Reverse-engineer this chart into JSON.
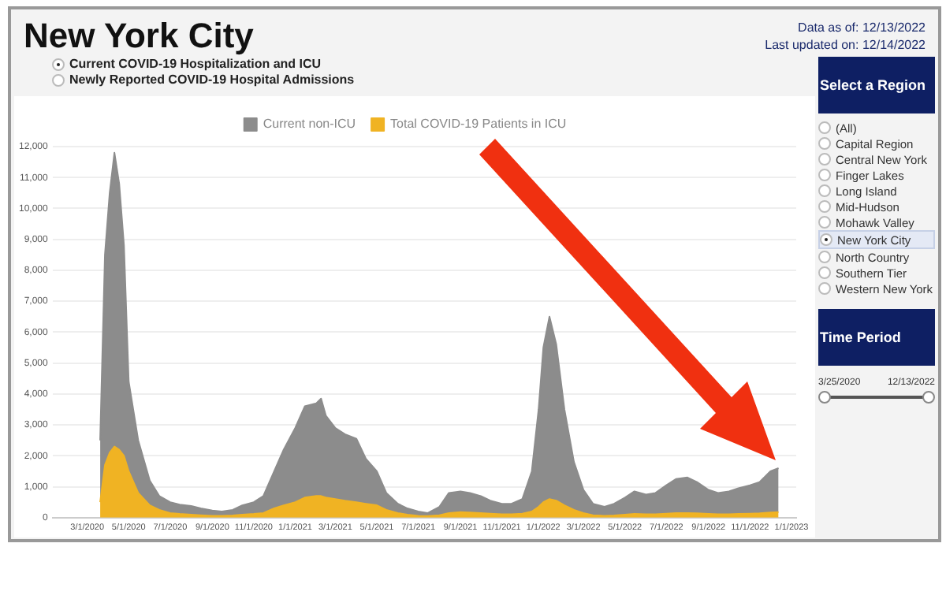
{
  "chart_data": {
    "type": "area",
    "stacked": true,
    "title": "New York City",
    "annotations": [
      "Data as of: 12/13/2022",
      "Last updated on: 12/14/2022",
      "Current COVID-19 Hospitalization and ICU",
      "Newly Reported COVID-19 Hospital Admissions",
      "Select a Region",
      "(All)",
      "Capital Region",
      "Central New York",
      "Finger Lakes",
      "Long Island",
      "Mid-Hudson",
      "Mohawk Valley",
      "New York City",
      "North Country",
      "Southern Tier",
      "Western New York",
      "Time Period",
      "3/25/2020",
      "12/13/2022"
    ],
    "x": [
      "2020-03-20",
      "2020-03-27",
      "2020-04-03",
      "2020-04-10",
      "2020-04-17",
      "2020-04-24",
      "2020-05-01",
      "2020-05-15",
      "2020-06-01",
      "2020-06-15",
      "2020-07-01",
      "2020-07-15",
      "2020-08-01",
      "2020-08-15",
      "2020-09-01",
      "2020-09-15",
      "2020-10-01",
      "2020-10-15",
      "2020-11-01",
      "2020-11-15",
      "2020-12-01",
      "2020-12-15",
      "2021-01-01",
      "2021-01-15",
      "2021-02-01",
      "2021-02-08",
      "2021-02-15",
      "2021-03-01",
      "2021-03-15",
      "2021-04-01",
      "2021-04-15",
      "2021-05-01",
      "2021-05-15",
      "2021-06-01",
      "2021-06-15",
      "2021-07-01",
      "2021-07-15",
      "2021-08-01",
      "2021-08-15",
      "2021-09-01",
      "2021-09-15",
      "2021-10-01",
      "2021-10-15",
      "2021-11-01",
      "2021-11-15",
      "2021-12-01",
      "2021-12-15",
      "2021-12-25",
      "2022-01-01",
      "2022-01-10",
      "2022-01-20",
      "2022-02-01",
      "2022-02-15",
      "2022-03-01",
      "2022-03-15",
      "2022-04-01",
      "2022-04-15",
      "2022-05-01",
      "2022-05-15",
      "2022-06-01",
      "2022-06-15",
      "2022-07-01",
      "2022-07-15",
      "2022-08-01",
      "2022-08-15",
      "2022-09-01",
      "2022-09-15",
      "2022-10-01",
      "2022-10-15",
      "2022-11-01",
      "2022-11-15",
      "2022-12-01",
      "2022-12-13"
    ],
    "series": [
      {
        "name": "Total COVID-19 Patients in ICU",
        "color": "#f0b323",
        "values": [
          500,
          1700,
          2100,
          2300,
          2200,
          2000,
          1500,
          800,
          400,
          250,
          150,
          120,
          100,
          80,
          60,
          60,
          70,
          100,
          120,
          150,
          300,
          400,
          500,
          650,
          700,
          700,
          650,
          600,
          550,
          500,
          450,
          400,
          250,
          150,
          100,
          60,
          50,
          80,
          150,
          180,
          170,
          150,
          130,
          110,
          110,
          130,
          200,
          350,
          500,
          600,
          550,
          400,
          250,
          150,
          80,
          60,
          70,
          100,
          120,
          110,
          110,
          130,
          150,
          150,
          140,
          120,
          110,
          110,
          120,
          130,
          140,
          170,
          180
        ]
      },
      {
        "name": "Current non-ICU",
        "color": "#8c8c8c",
        "values": [
          2000,
          6800,
          8400,
          9500,
          8600,
          6800,
          2900,
          1700,
          800,
          450,
          350,
          300,
          280,
          220,
          170,
          140,
          180,
          300,
          380,
          550,
          1200,
          1800,
          2400,
          2950,
          3000,
          3150,
          2650,
          2300,
          2150,
          2050,
          1450,
          1100,
          550,
          300,
          200,
          140,
          100,
          270,
          650,
          670,
          630,
          550,
          420,
          340,
          340,
          470,
          1300,
          3150,
          5000,
          5900,
          5050,
          3100,
          1550,
          750,
          370,
          290,
          380,
          550,
          730,
          640,
          690,
          920,
          1100,
          1150,
          1010,
          780,
          690,
          740,
          830,
          920,
          1010,
          1330,
          1420
        ]
      }
    ],
    "xlim": [
      "2020-01-10",
      "2023-01-08"
    ],
    "xticks": [
      {
        "value": "2020-03-01",
        "label": "3/1/2020"
      },
      {
        "value": "2020-05-01",
        "label": "5/1/2020"
      },
      {
        "value": "2020-07-01",
        "label": "7/1/2020"
      },
      {
        "value": "2020-09-01",
        "label": "9/1/2020"
      },
      {
        "value": "2020-11-01",
        "label": "11/1/2020"
      },
      {
        "value": "2021-01-01",
        "label": "1/1/2021"
      },
      {
        "value": "2021-03-01",
        "label": "3/1/2021"
      },
      {
        "value": "2021-05-01",
        "label": "5/1/2021"
      },
      {
        "value": "2021-07-01",
        "label": "7/1/2021"
      },
      {
        "value": "2021-09-01",
        "label": "9/1/2021"
      },
      {
        "value": "2021-11-01",
        "label": "11/1/2021"
      },
      {
        "value": "2022-01-01",
        "label": "1/1/2022"
      },
      {
        "value": "2022-03-01",
        "label": "3/1/2022"
      },
      {
        "value": "2022-05-01",
        "label": "5/1/2022"
      },
      {
        "value": "2022-07-01",
        "label": "7/1/2022"
      },
      {
        "value": "2022-09-01",
        "label": "9/1/2022"
      },
      {
        "value": "2022-11-01",
        "label": "11/1/2022"
      },
      {
        "value": "2023-01-01",
        "label": "1/1/2023"
      }
    ],
    "ylim": [
      0,
      12000
    ],
    "yticks": [
      0,
      {
        "value": 1000,
        "label": "1,000"
      },
      {
        "value": 2000,
        "label": "2,000"
      },
      {
        "value": 3000,
        "label": "3,000"
      },
      {
        "value": 4000,
        "label": "4,000"
      },
      {
        "value": 5000,
        "label": "5,000"
      },
      {
        "value": 6000,
        "label": "6,000"
      },
      {
        "value": 7000,
        "label": "7,000"
      },
      {
        "value": 8000,
        "label": "8,000"
      },
      {
        "value": 9000,
        "label": "9,000"
      },
      {
        "value": 10000,
        "label": "10,000"
      },
      {
        "value": 11000,
        "label": "11,000"
      },
      {
        "value": 12000,
        "label": "12,000"
      }
    ],
    "grid": "y",
    "legend": "top"
  }
}
